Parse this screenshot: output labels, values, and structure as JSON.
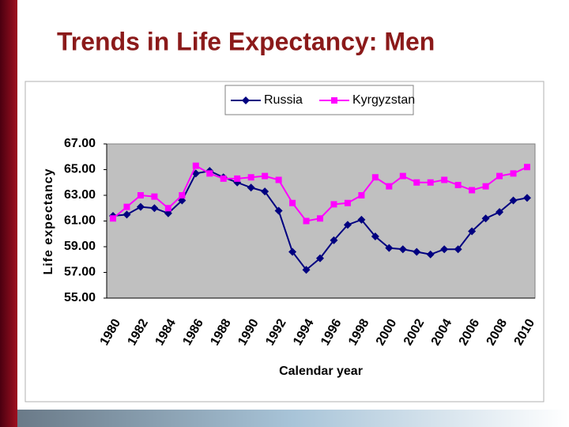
{
  "chart_data": {
    "type": "line",
    "title": "Trends in Life Expectancy: Men",
    "x_label": "Calendar year",
    "y_label": "Life expectancy",
    "categories": [
      "1980",
      null,
      "1982",
      null,
      "1984",
      null,
      "1986",
      null,
      "1988",
      null,
      "1990",
      null,
      "1992",
      null,
      "1994",
      null,
      "1996",
      null,
      "1998",
      null,
      "2000",
      null,
      "2002",
      null,
      "2004",
      null,
      "2006",
      null,
      "2008",
      null,
      "2010"
    ],
    "series": [
      {
        "name": "Russia",
        "color": "#000080",
        "marker": "diamond",
        "values": [
          61.4,
          61.5,
          62.1,
          62.0,
          61.6,
          62.6,
          64.7,
          64.9,
          64.4,
          64.0,
          63.6,
          63.3,
          61.8,
          58.6,
          57.2,
          58.1,
          59.5,
          60.7,
          61.1,
          59.8,
          58.9,
          58.8,
          58.6,
          58.4,
          58.8,
          58.8,
          60.2,
          61.2,
          61.7,
          62.6,
          62.8
        ]
      },
      {
        "name": "Kyrgyzstan",
        "color": "#ff00ff",
        "marker": "square",
        "values": [
          61.2,
          62.1,
          63.0,
          62.9,
          62.0,
          63.0,
          65.3,
          64.7,
          64.3,
          64.3,
          64.4,
          64.5,
          64.2,
          62.4,
          61.0,
          61.2,
          62.3,
          62.4,
          63.0,
          64.4,
          63.7,
          64.5,
          64.0,
          64.0,
          64.2,
          63.8,
          63.4,
          63.7,
          64.5,
          64.7,
          65.2
        ]
      }
    ],
    "ylim": [
      55,
      67
    ],
    "yticks": [
      {
        "value": 55,
        "label": "55.00"
      },
      {
        "value": 57,
        "label": "57.00"
      },
      {
        "value": 59,
        "label": "59.00"
      },
      {
        "value": 61,
        "label": "61.00"
      },
      {
        "value": 63,
        "label": "63.00"
      },
      {
        "value": 65,
        "label": "65.00"
      },
      {
        "value": 67,
        "label": "67.00"
      }
    ],
    "legend": "top"
  }
}
